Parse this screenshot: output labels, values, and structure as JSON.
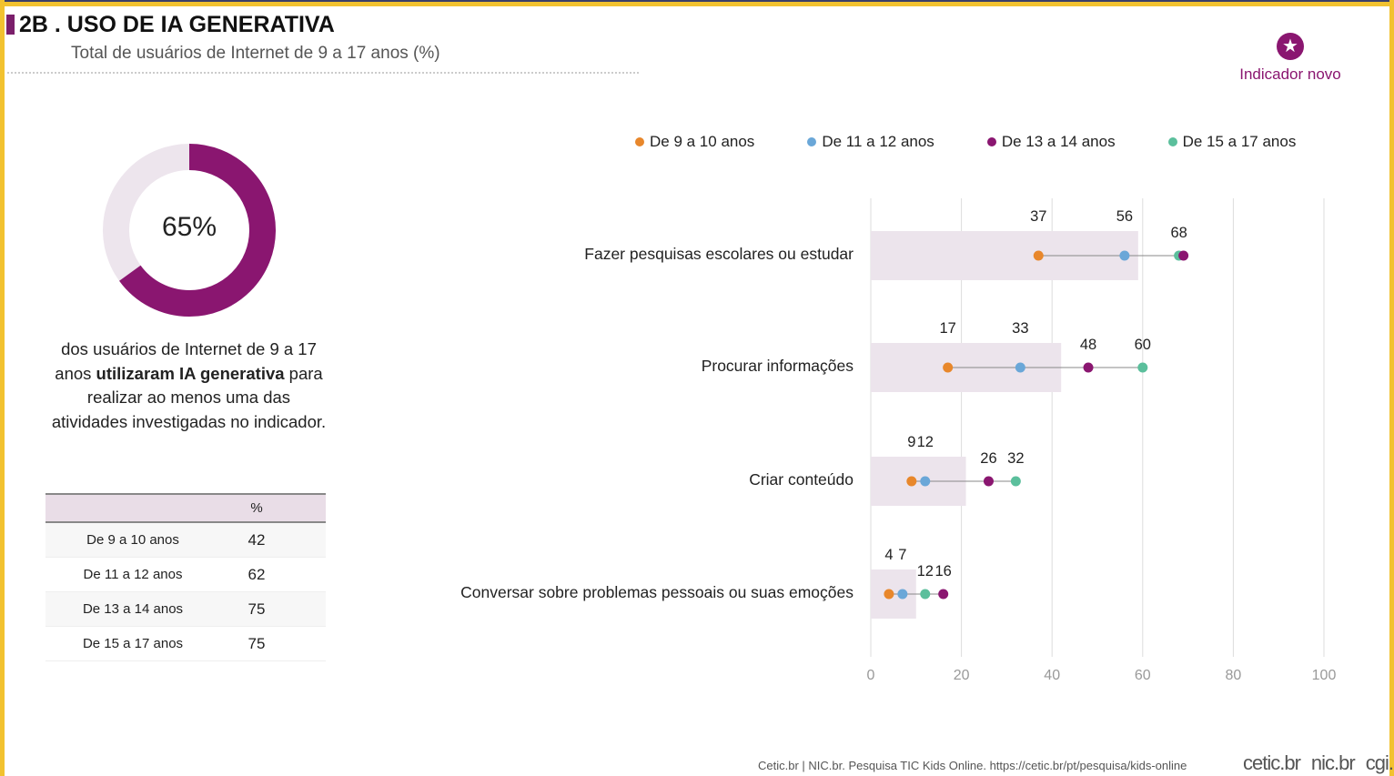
{
  "header": {
    "title": "2B . USO DE IA GENERATIVA",
    "subtitle": "Total de usuários de Internet de 9 a 17 anos (%)",
    "badge": "Indicador novo"
  },
  "summary": {
    "value": 65,
    "value_label": "65%",
    "text_pre": "dos usuários de Internet de 9 a 17 anos ",
    "text_bold": "utilizaram IA generativa",
    "text_post": " para realizar ao menos uma das atividades investigadas no indicador."
  },
  "table": {
    "header": [
      "",
      "%"
    ],
    "rows": [
      {
        "label": "De 9 a 10 anos",
        "value": "42"
      },
      {
        "label": "De 11 a 12 anos",
        "value": "62"
      },
      {
        "label": "De 13 a 14 anos",
        "value": "75"
      },
      {
        "label": "De 15 a 17 anos",
        "value": "75"
      }
    ]
  },
  "chart_data": {
    "type": "dot-plot",
    "xlim": [
      0,
      100
    ],
    "xticks": [
      "0",
      "20",
      "40",
      "60",
      "80",
      "100"
    ],
    "grid": true,
    "legend_position": "top",
    "series": [
      {
        "name": "De 9 a 10 anos",
        "color": "#e8872b",
        "values": [
          37,
          17,
          9,
          4
        ]
      },
      {
        "name": "De 11 a 12 anos",
        "color": "#6aa7d8",
        "values": [
          56,
          33,
          12,
          7
        ]
      },
      {
        "name": "De 13 a 14 anos",
        "color": "#8a1670",
        "values": [
          69,
          48,
          26,
          16
        ]
      },
      {
        "name": "De 15 a 17 anos",
        "color": "#5bbf9c",
        "values": [
          68,
          60,
          32,
          12
        ]
      }
    ],
    "categories": [
      "Fazer pesquisas escolares ou estudar",
      "Procurar informações",
      "Criar conteúdo",
      "Conversar sobre problemas pessoais ou suas emoções"
    ],
    "background_bars": [
      59,
      42,
      21,
      10
    ],
    "labels": [
      [
        "37",
        "56",
        "",
        "68"
      ],
      [
        "17",
        "33",
        "48",
        "60"
      ],
      [
        "9",
        "12",
        "26",
        "32"
      ],
      [
        "4",
        "7",
        "16",
        "12"
      ]
    ]
  },
  "footer": {
    "source": "Cetic.br | NIC.br. Pesquisa TIC Kids Online. https://cetic.br/pt/pesquisa/kids-online",
    "logos": [
      "cetic.br",
      "nic.br",
      "cgi.br"
    ]
  }
}
